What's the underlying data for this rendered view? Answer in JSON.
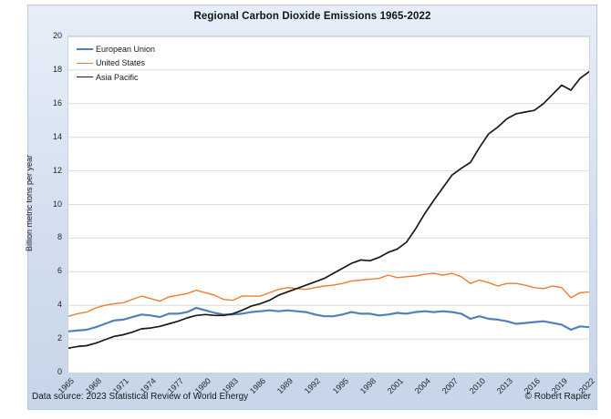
{
  "chart_data": {
    "type": "line",
    "title": "Regional Carbon Dioxide Emissions 1965-2022",
    "xlabel": "",
    "ylabel": "Billion metric tons per year",
    "ylim": [
      0,
      20
    ],
    "yticks": [
      0,
      2,
      4,
      6,
      8,
      10,
      12,
      14,
      16,
      18,
      20
    ],
    "x_range": [
      1965,
      2022
    ],
    "x_step_years": 1,
    "xticks": [
      1965,
      1968,
      1971,
      1974,
      1977,
      1980,
      1983,
      1986,
      1989,
      1992,
      1995,
      1998,
      2001,
      2004,
      2007,
      2010,
      2013,
      2016,
      2019,
      2022
    ],
    "grid": "horizontal",
    "legend_position": "top-left-inside",
    "series": [
      {
        "name": "European Union",
        "color": "#4f81bd",
        "stroke_width": 2.2,
        "values": [
          2.45,
          2.5,
          2.55,
          2.7,
          2.9,
          3.1,
          3.15,
          3.3,
          3.45,
          3.4,
          3.3,
          3.5,
          3.5,
          3.6,
          3.85,
          3.7,
          3.55,
          3.45,
          3.45,
          3.5,
          3.6,
          3.65,
          3.7,
          3.65,
          3.7,
          3.65,
          3.6,
          3.45,
          3.35,
          3.35,
          3.45,
          3.6,
          3.5,
          3.5,
          3.4,
          3.45,
          3.55,
          3.5,
          3.6,
          3.65,
          3.6,
          3.65,
          3.6,
          3.5,
          3.2,
          3.35,
          3.2,
          3.15,
          3.05,
          2.9,
          2.95,
          3.0,
          3.05,
          2.95,
          2.85,
          2.55,
          2.75,
          2.7
        ]
      },
      {
        "name": "United States",
        "color": "#ed7d31",
        "stroke_width": 1.4,
        "values": [
          3.35,
          3.5,
          3.6,
          3.85,
          4.0,
          4.1,
          4.15,
          4.35,
          4.55,
          4.4,
          4.25,
          4.5,
          4.6,
          4.7,
          4.9,
          4.75,
          4.6,
          4.35,
          4.3,
          4.55,
          4.55,
          4.55,
          4.75,
          4.95,
          5.05,
          5.0,
          4.95,
          5.05,
          5.15,
          5.2,
          5.3,
          5.45,
          5.5,
          5.55,
          5.6,
          5.8,
          5.65,
          5.7,
          5.75,
          5.85,
          5.9,
          5.8,
          5.9,
          5.7,
          5.3,
          5.5,
          5.35,
          5.15,
          5.3,
          5.3,
          5.2,
          5.05,
          5.0,
          5.15,
          5.05,
          4.45,
          4.75,
          4.8
        ]
      },
      {
        "name": "Asia Pacific",
        "color": "#1a1a1a",
        "stroke_width": 1.7,
        "values": [
          1.45,
          1.55,
          1.6,
          1.75,
          1.95,
          2.15,
          2.25,
          2.4,
          2.6,
          2.65,
          2.75,
          2.9,
          3.05,
          3.25,
          3.4,
          3.45,
          3.4,
          3.4,
          3.5,
          3.7,
          3.95,
          4.1,
          4.3,
          4.6,
          4.8,
          5.0,
          5.2,
          5.4,
          5.6,
          5.9,
          6.2,
          6.5,
          6.7,
          6.65,
          6.85,
          7.15,
          7.35,
          7.75,
          8.55,
          9.45,
          10.25,
          11.0,
          11.75,
          12.15,
          12.5,
          13.4,
          14.2,
          14.6,
          15.1,
          15.4,
          15.5,
          15.6,
          16.0,
          16.55,
          17.1,
          16.8,
          17.5,
          17.9
        ]
      }
    ]
  },
  "footer": {
    "source": "Data source: 2023 Statistical Review of World Energy",
    "copyright": "© Robert Rapier"
  },
  "colors": {
    "panel_background_top": "#e7eef8",
    "panel_background_bottom": "#c7d5e9",
    "plot_background": "#ffffff",
    "gridline": "#dcdcdc",
    "text": "#1a1a1a"
  }
}
